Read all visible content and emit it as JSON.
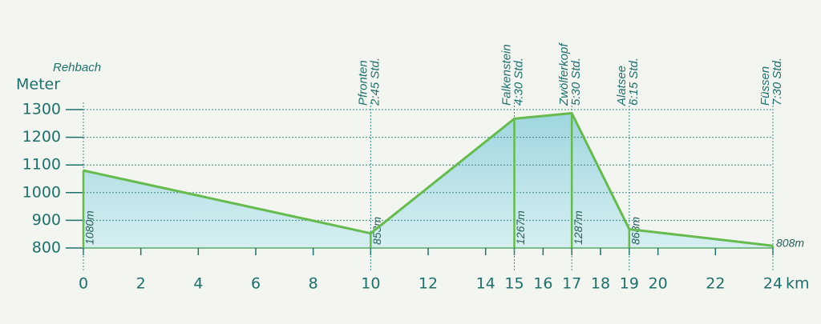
{
  "chart_data": {
    "type": "area",
    "y_label": "Meter",
    "x_label": "km",
    "x": [
      0,
      10,
      15,
      17,
      19,
      24
    ],
    "values": [
      1080,
      853,
      1267,
      1287,
      868,
      808
    ],
    "value_labels": [
      "1080m",
      "853m",
      "1267m",
      "1287m",
      "868m",
      "808m"
    ],
    "waypoints": [
      "Rehbach",
      "Pfronten",
      "Falkenstein",
      "Zwölferkopf",
      "Alatsee",
      "Füssen"
    ],
    "times": [
      null,
      "2:45 Std.",
      "4:30 Std.",
      "5:30 Std.",
      "6:15 Std.",
      "7:30 Std."
    ],
    "color": "#66bb4e",
    "fill": "#bfe5ea",
    "xlim": [
      0,
      24
    ],
    "ylim": [
      800,
      1300
    ],
    "xticks": [
      0,
      2,
      4,
      6,
      8,
      10,
      12,
      14,
      15,
      16,
      17,
      18,
      19,
      20,
      22,
      24
    ],
    "yticks": [
      800,
      900,
      1000,
      1100,
      1200,
      1300
    ],
    "grid": true
  }
}
